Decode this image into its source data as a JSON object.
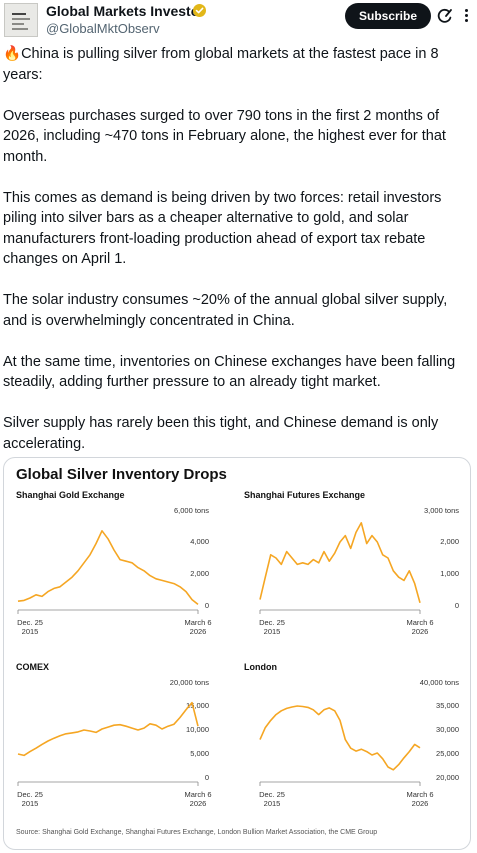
{
  "post": {
    "author_name": "Global Markets Investor",
    "handle": "@GlobalMktObserv",
    "subscribe_label": "Subscribe",
    "fire_emoji": "🔥",
    "paragraphs": [
      "China is pulling silver from global markets at the fastest pace in 8 years:",
      "Overseas purchases surged to over 790 tons in the first 2 months of 2026, including ~470 tons in February alone, the highest ever for that month.",
      "This comes as demand is being driven by two forces: retail investors piling into silver bars as a cheaper alternative to gold, and solar manufacturers front-loading production ahead of export tax rebate changes on April 1.",
      "The solar industry consumes ~20% of the annual global silver supply, and is overwhelmingly concentrated in China.",
      "At the same time, inventories on Chinese exchanges have been falling steadily, adding further pressure to an already tight market.",
      "Silver supply has rarely been this tight, and Chinese demand is only accelerating."
    ],
    "colors": {
      "verified_badge": "#e2b719",
      "line": "#f5a623"
    },
    "icons": [
      "verified-badge-icon",
      "grok-icon",
      "more-icon"
    ]
  },
  "chart_data": [
    {
      "type": "line",
      "title": "Shanghai Gold Exchange",
      "unit_label": "6,000 tons",
      "ylim": [
        0,
        6000
      ],
      "yticks": [
        "4,000",
        "2,000",
        "0"
      ],
      "ytick_values": [
        4000,
        2000,
        0
      ],
      "x_start_label": "Dec. 25\n2015",
      "x_end_label": "March 6\n2026",
      "series": [
        {
          "values": [
            300,
            350,
            500,
            700,
            600,
            900,
            1100,
            1200,
            1500,
            1800,
            2200,
            2700,
            3200,
            3900,
            4700,
            4200,
            3500,
            2900,
            2800,
            2700,
            2400,
            2200,
            1900,
            1700,
            1600,
            1500,
            1400,
            1200,
            900,
            400,
            100
          ]
        }
      ]
    },
    {
      "type": "line",
      "title": "Shanghai Futures Exchange",
      "unit_label": "3,000 tons",
      "ylim": [
        0,
        3000
      ],
      "yticks": [
        "2,000",
        "1,000",
        "0"
      ],
      "ytick_values": [
        2000,
        1000,
        0
      ],
      "x_start_label": "Dec. 25\n2015",
      "x_end_label": "March 6\n2026",
      "series": [
        {
          "values": [
            200,
            900,
            1600,
            1500,
            1300,
            1700,
            1500,
            1300,
            1350,
            1300,
            1450,
            1350,
            1700,
            1400,
            1650,
            2000,
            2200,
            1800,
            2300,
            2600,
            1950,
            2200,
            2000,
            1600,
            1500,
            1100,
            900,
            800,
            1100,
            700,
            100
          ]
        }
      ]
    },
    {
      "type": "line",
      "title": "COMEX",
      "unit_label": "20,000 tons",
      "ylim": [
        0,
        20000
      ],
      "yticks": [
        "15,000",
        "10,000",
        "5,000",
        "0"
      ],
      "ytick_values": [
        15000,
        10000,
        5000,
        0
      ],
      "x_start_label": "Dec. 25\n2015",
      "x_end_label": "March 6\n2026",
      "series": [
        {
          "values": [
            5000,
            4700,
            5500,
            6200,
            7000,
            7700,
            8300,
            8800,
            9200,
            9400,
            9600,
            10000,
            9800,
            9500,
            10200,
            10600,
            11000,
            11100,
            10800,
            10400,
            10000,
            10400,
            11300,
            11000,
            10200,
            10800,
            11200,
            12600,
            14200,
            15700,
            10800
          ]
        }
      ]
    },
    {
      "type": "line",
      "title": "London",
      "unit_label": "40,000 tons",
      "ylim": [
        20000,
        40000
      ],
      "yticks": [
        "35,000",
        "30,000",
        "25,000",
        "20,000"
      ],
      "ytick_values": [
        35000,
        30000,
        25000,
        20000
      ],
      "x_start_label": "Dec. 25\n2015",
      "x_end_label": "March 6\n2026",
      "series": [
        {
          "values": [
            28000,
            30500,
            32000,
            33200,
            34000,
            34500,
            34800,
            35000,
            34900,
            34700,
            34200,
            33200,
            34200,
            34600,
            34000,
            32000,
            28000,
            26200,
            25600,
            26000,
            25500,
            24800,
            25200,
            24000,
            22300,
            21700,
            22800,
            24200,
            25500,
            27000,
            26300
          ]
        }
      ]
    }
  ],
  "figure": {
    "title": "Global Silver Inventory Drops",
    "source": "Source: Shanghai Gold Exchange, Shanghai Futures Exchange, London Bullion Market Association, the CME Group"
  }
}
